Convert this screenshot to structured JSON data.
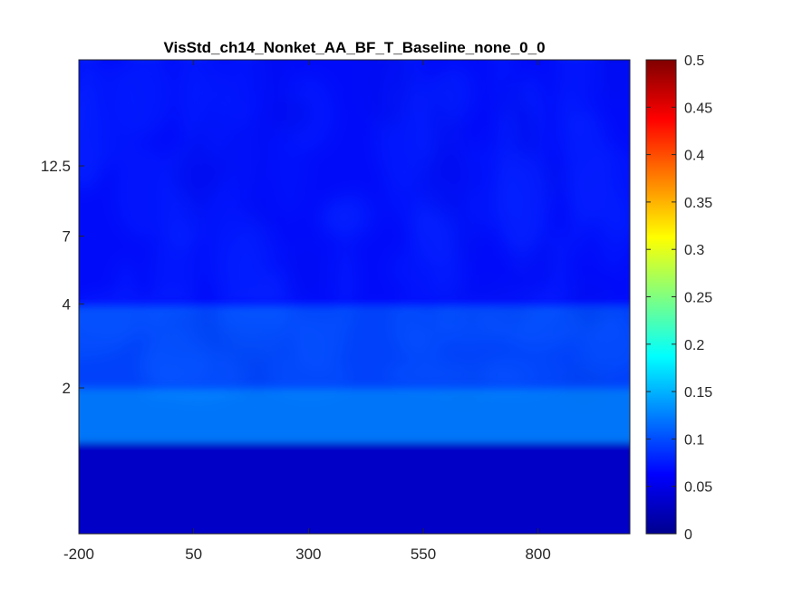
{
  "chart_data": {
    "type": "heatmap",
    "title": "VisStd_ch14_Nonket_AA_BF_T_Baseline_none_0_0",
    "xlabel": "",
    "ylabel": "",
    "x_ticks": [
      "-200",
      "50",
      "300",
      "550",
      "800"
    ],
    "x_tick_values": [
      -200,
      50,
      300,
      550,
      800
    ],
    "xlim": [
      -200,
      1000
    ],
    "y_ticks": [
      "2",
      "4",
      "7",
      "12.5"
    ],
    "y_tick_values": [
      2,
      4,
      7,
      12.5
    ],
    "ylim": [
      0.6,
      30
    ],
    "y_scale": "log",
    "colormap": "jet",
    "clim": [
      0,
      0.5
    ],
    "colorbar_ticks": [
      "0",
      "0.05",
      "0.1",
      "0.15",
      "0.2",
      "0.25",
      "0.3",
      "0.35",
      "0.4",
      "0.45",
      "0.5"
    ],
    "colorbar_tick_values": [
      0,
      0.05,
      0.1,
      0.15,
      0.2,
      0.25,
      0.3,
      0.35,
      0.4,
      0.45,
      0.5
    ],
    "grid": false,
    "value_bands": [
      {
        "freq_range": [
          0.6,
          1.3
        ],
        "value": 0.035
      },
      {
        "freq_range": [
          1.3,
          2.0
        ],
        "value": 0.13
      },
      {
        "freq_range": [
          2.0,
          4.0
        ],
        "value": 0.1
      },
      {
        "freq_range": [
          4.0,
          30
        ],
        "value": 0.07
      }
    ]
  }
}
